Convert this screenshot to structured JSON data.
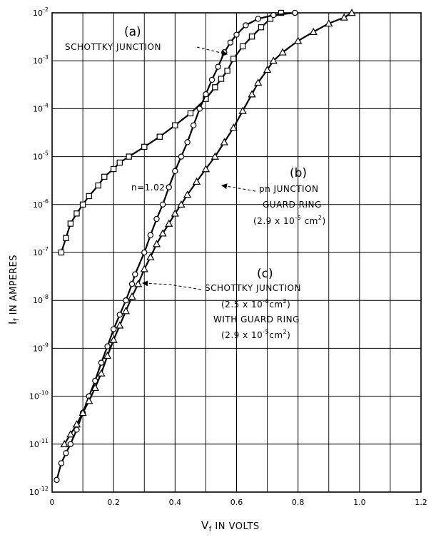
{
  "chart_data": {
    "type": "line",
    "y_scale": "log",
    "xlim": [
      0,
      1.2
    ],
    "ylim": [
      1e-12,
      0.01
    ],
    "grid": true,
    "xlabel": {
      "main": "V",
      "sub": "f",
      "rest": " IN VOLTS"
    },
    "ylabel": {
      "main": "I",
      "sub": "f",
      "rest": " IN AMPERES"
    },
    "x_ticks": [
      "0",
      "0.2",
      "0.4",
      "0.6",
      "0.8",
      "1.0",
      "1.2"
    ],
    "y_ticks": [
      {
        "base": "10",
        "exp": "-12"
      },
      {
        "base": "10",
        "exp": "-11"
      },
      {
        "base": "10",
        "exp": "-10"
      },
      {
        "base": "10",
        "exp": "-9"
      },
      {
        "base": "10",
        "exp": "-8"
      },
      {
        "base": "10",
        "exp": "-7"
      },
      {
        "base": "10",
        "exp": "-6"
      },
      {
        "base": "10",
        "exp": "-5"
      },
      {
        "base": "10",
        "exp": "-4"
      },
      {
        "base": "10",
        "exp": "-3"
      },
      {
        "base": "10",
        "exp": "-2"
      }
    ],
    "series": [
      {
        "marker": "square",
        "points": [
          [
            0.03,
            1e-07
          ],
          [
            0.045,
            2e-07
          ],
          [
            0.06,
            4e-07
          ],
          [
            0.08,
            6.5e-07
          ],
          [
            0.1,
            1e-06
          ],
          [
            0.12,
            1.5e-06
          ],
          [
            0.15,
            2.5e-06
          ],
          [
            0.17,
            3.8e-06
          ],
          [
            0.2,
            5.5e-06
          ],
          [
            0.22,
            7.5e-06
          ],
          [
            0.25,
            1e-05
          ],
          [
            0.3,
            1.6e-05
          ],
          [
            0.35,
            2.6e-05
          ],
          [
            0.4,
            4.5e-05
          ],
          [
            0.45,
            8e-05
          ],
          [
            0.5,
            0.00016
          ],
          [
            0.53,
            0.00028
          ],
          [
            0.55,
            0.00042
          ],
          [
            0.57,
            0.00062
          ],
          [
            0.59,
            0.0011
          ],
          [
            0.62,
            0.002
          ],
          [
            0.65,
            0.0032
          ],
          [
            0.68,
            0.005
          ],
          [
            0.71,
            0.0075
          ],
          [
            0.745,
            0.01
          ]
        ]
      },
      {
        "marker": "circle",
        "points": [
          [
            0.015,
            1.8e-12
          ],
          [
            0.03,
            4e-12
          ],
          [
            0.045,
            6.5e-12
          ],
          [
            0.06,
            1e-11
          ],
          [
            0.08,
            2e-11
          ],
          [
            0.1,
            4.5e-11
          ],
          [
            0.12,
            1e-10
          ],
          [
            0.14,
            2.1e-10
          ],
          [
            0.16,
            5e-10
          ],
          [
            0.18,
            1.1e-09
          ],
          [
            0.2,
            2.5e-09
          ],
          [
            0.22,
            5e-09
          ],
          [
            0.24,
            1e-08
          ],
          [
            0.26,
            2.2e-08
          ],
          [
            0.27,
            3.5e-08
          ],
          [
            0.3,
            1e-07
          ],
          [
            0.32,
            2.3e-07
          ],
          [
            0.34,
            5e-07
          ],
          [
            0.36,
            1e-06
          ],
          [
            0.38,
            2.3e-06
          ],
          [
            0.4,
            5e-06
          ],
          [
            0.42,
            1e-05
          ],
          [
            0.44,
            2e-05
          ],
          [
            0.46,
            4.5e-05
          ],
          [
            0.48,
            0.0001
          ],
          [
            0.5,
            0.0002
          ],
          [
            0.52,
            0.0004
          ],
          [
            0.54,
            0.00075
          ],
          [
            0.56,
            0.0015
          ],
          [
            0.58,
            0.0024
          ],
          [
            0.6,
            0.0035
          ],
          [
            0.63,
            0.0055
          ],
          [
            0.67,
            0.0075
          ],
          [
            0.72,
            0.009
          ],
          [
            0.79,
            0.01
          ]
        ]
      },
      {
        "marker": "triangle",
        "points": [
          [
            0.04,
            1e-11
          ],
          [
            0.06,
            1.6e-11
          ],
          [
            0.08,
            2.6e-11
          ],
          [
            0.1,
            4.5e-11
          ],
          [
            0.12,
            8e-11
          ],
          [
            0.14,
            1.5e-10
          ],
          [
            0.16,
            3e-10
          ],
          [
            0.18,
            7e-10
          ],
          [
            0.2,
            1.5e-09
          ],
          [
            0.22,
            3e-09
          ],
          [
            0.24,
            6e-09
          ],
          [
            0.26,
            1.2e-08
          ],
          [
            0.28,
            2.2e-08
          ],
          [
            0.3,
            4.5e-08
          ],
          [
            0.32,
            8e-08
          ],
          [
            0.34,
            1.5e-07
          ],
          [
            0.36,
            2.5e-07
          ],
          [
            0.38,
            4e-07
          ],
          [
            0.4,
            6.5e-07
          ],
          [
            0.42,
            1e-06
          ],
          [
            0.44,
            1.6e-06
          ],
          [
            0.47,
            3e-06
          ],
          [
            0.5,
            5.5e-06
          ],
          [
            0.53,
            1e-05
          ],
          [
            0.56,
            2e-05
          ],
          [
            0.59,
            4e-05
          ],
          [
            0.62,
            9e-05
          ],
          [
            0.65,
            0.0002
          ],
          [
            0.67,
            0.00035
          ],
          [
            0.7,
            0.00065
          ],
          [
            0.72,
            0.001
          ],
          [
            0.75,
            0.0015
          ],
          [
            0.8,
            0.0026
          ],
          [
            0.85,
            0.004
          ],
          [
            0.9,
            0.006
          ],
          [
            0.95,
            0.008
          ],
          [
            0.975,
            0.01
          ]
        ]
      }
    ],
    "annotations": {
      "a_label": "(a)",
      "a_text": "SCHOTTKY JUNCTION",
      "n_text": "n=1.02",
      "b_label": "(b)",
      "b_line1": "pn JUNCTION",
      "b_line2": "GUARD RING",
      "b_area_pre": "(2.9 x 10",
      "b_area_exp": "-5",
      "b_area_post": " cm",
      "b_area_sq": "2",
      "b_area_close": ")",
      "c_label": "(c)",
      "c_line1": "SCHOTTKY JUNCTION",
      "c_area_pre": "(2.5 x 10",
      "c_area_exp": "-6",
      "c_area_post": "cm",
      "c_area_sq": "2",
      "c_area_close": ")",
      "c_line3": "WITH GUARD RING",
      "c_area2_pre": "(2.9 x 10",
      "c_area2_exp": "-5",
      "c_area2_post": "cm",
      "c_area2_sq": "2",
      "c_area2_close": ")"
    }
  }
}
